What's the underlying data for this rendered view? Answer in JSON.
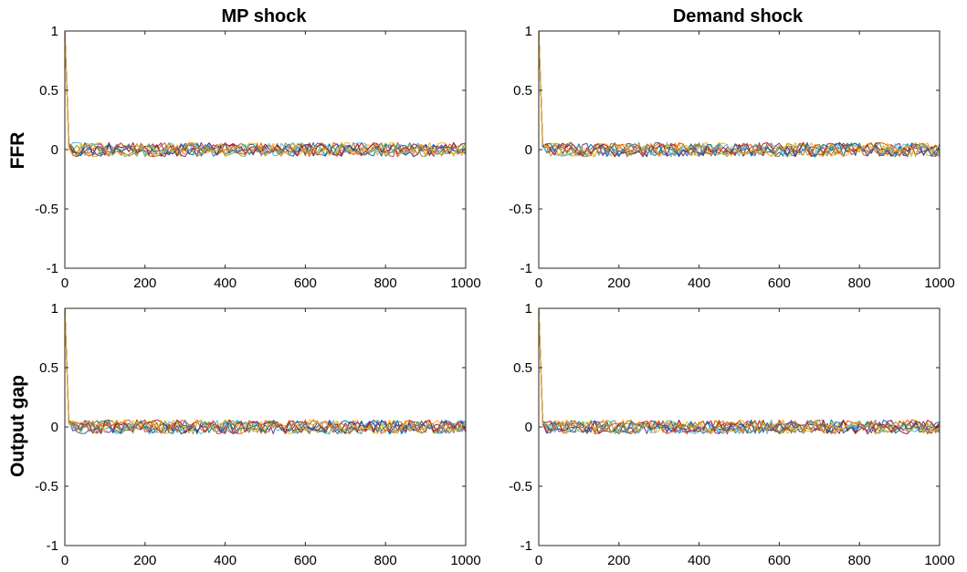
{
  "figure": {
    "column_titles": [
      "MP shock",
      "Demand shock"
    ],
    "row_labels": [
      "FFR",
      "Output gap"
    ]
  },
  "colors": [
    "#0072BD",
    "#D95319",
    "#EDB120",
    "#7E2F8E",
    "#77AC30",
    "#4DBEEE",
    "#A2142F"
  ],
  "chart_data": [
    {
      "type": "line",
      "title": "MP shock",
      "xlabel": "",
      "ylabel": "FFR",
      "xlim": [
        0,
        1000
      ],
      "ylim": [
        -1,
        1
      ],
      "xticks": [
        0,
        200,
        400,
        600,
        800,
        1000
      ],
      "xticklabels": [
        "0",
        "200",
        "400",
        "600",
        "800",
        "1000"
      ],
      "yticks": [
        -1,
        -0.5,
        0,
        0.5,
        1
      ],
      "yticklabels": [
        "-1",
        "-0.5",
        "0",
        "0.5",
        "1"
      ],
      "grid": false,
      "series_count": 10,
      "peak_at_zero": 1,
      "decay_to_zero_by": 15,
      "noise_amplitude": 0.06,
      "noise_seed": 11
    },
    {
      "type": "line",
      "title": "Demand shock",
      "xlabel": "",
      "ylabel": "",
      "xlim": [
        0,
        1000
      ],
      "ylim": [
        -1,
        1
      ],
      "xticks": [
        0,
        200,
        400,
        600,
        800,
        1000
      ],
      "xticklabels": [
        "0",
        "200",
        "400",
        "600",
        "800",
        "1000"
      ],
      "yticks": [
        -1,
        -0.5,
        0,
        0.5,
        1
      ],
      "yticklabels": [
        "-1",
        "-0.5",
        "0",
        "0.5",
        "1"
      ],
      "grid": false,
      "series_count": 10,
      "peak_at_zero": 1,
      "decay_to_zero_by": 15,
      "noise_amplitude": 0.06,
      "noise_seed": 23
    },
    {
      "type": "line",
      "title": "",
      "xlabel": "",
      "ylabel": "Output gap",
      "xlim": [
        0,
        1000
      ],
      "ylim": [
        -1,
        1
      ],
      "xticks": [
        0,
        200,
        400,
        600,
        800,
        1000
      ],
      "xticklabels": [
        "0",
        "200",
        "400",
        "600",
        "800",
        "1000"
      ],
      "yticks": [
        -1,
        -0.5,
        0,
        0.5,
        1
      ],
      "yticklabels": [
        "-1",
        "-0.5",
        "0",
        "0.5",
        "1"
      ],
      "grid": false,
      "series_count": 10,
      "peak_at_zero": 1,
      "decay_to_zero_by": 15,
      "noise_amplitude": 0.06,
      "noise_seed": 37
    },
    {
      "type": "line",
      "title": "",
      "xlabel": "",
      "ylabel": "",
      "xlim": [
        0,
        1000
      ],
      "ylim": [
        -1,
        1
      ],
      "xticks": [
        0,
        200,
        400,
        600,
        800,
        1000
      ],
      "xticklabels": [
        "0",
        "200",
        "400",
        "600",
        "800",
        "1000"
      ],
      "yticks": [
        -1,
        -0.5,
        0,
        0.5,
        1
      ],
      "yticklabels": [
        "-1",
        "-0.5",
        "0",
        "0.5",
        "1"
      ],
      "grid": false,
      "series_count": 10,
      "peak_at_zero": 1,
      "decay_to_zero_by": 15,
      "noise_amplitude": 0.06,
      "noise_seed": 53
    }
  ]
}
